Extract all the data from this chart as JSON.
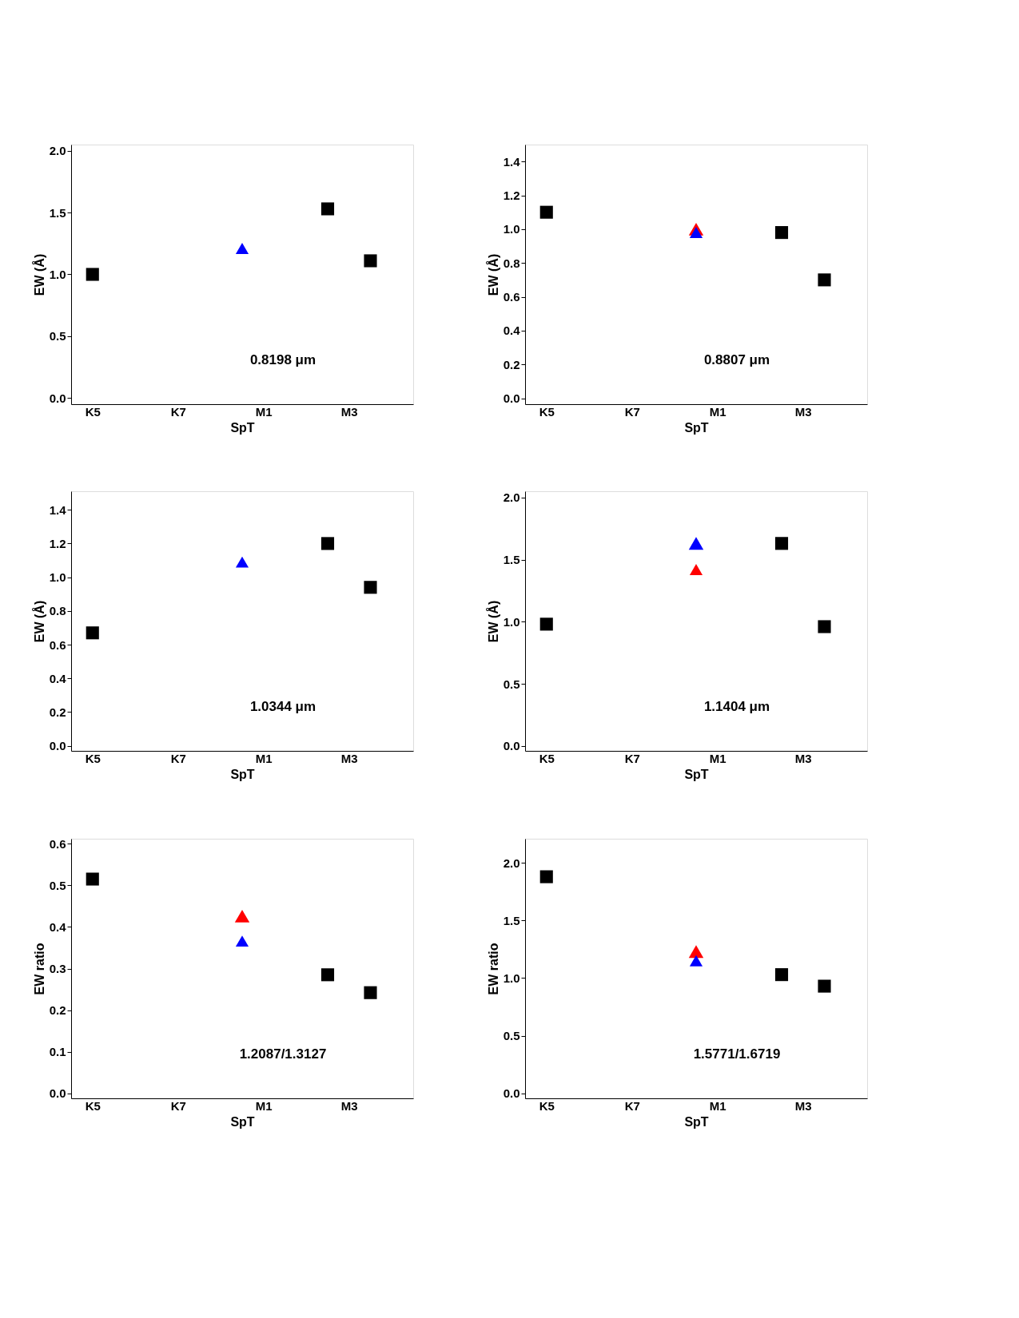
{
  "chart_data": [
    {
      "type": "scatter",
      "xlabel": "SpT",
      "ylabel": "EW (Å)",
      "annotations": [
        "0.8198 μm"
      ],
      "categories": [
        "K5",
        null,
        null,
        null,
        "K7",
        null,
        null,
        null,
        "M1",
        null,
        null,
        null,
        "M3",
        null,
        null
      ],
      "ylim": [
        -0.05,
        2.05
      ],
      "yticks": [
        {
          "value": 0,
          "label": "0.0"
        },
        {
          "value": 0.5,
          "label": "0.5"
        },
        {
          "value": 1,
          "label": "1.0"
        },
        {
          "value": 1.5,
          "label": "1.5"
        },
        {
          "value": 2,
          "label": "2.0"
        }
      ],
      "grid": false,
      "series": [
        {
          "color": "#000000",
          "marker": "square",
          "values": [
            1.0,
            null,
            null,
            null,
            null,
            null,
            null,
            null,
            null,
            null,
            null,
            1.53,
            null,
            1.11,
            null
          ]
        },
        {
          "color": "#0000ff",
          "marker": "triangle",
          "values": [
            null,
            null,
            null,
            null,
            null,
            null,
            null,
            1.21,
            null,
            null,
            null,
            null,
            null,
            null,
            null
          ]
        }
      ]
    },
    {
      "type": "scatter",
      "xlabel": "SpT",
      "ylabel": "EW (Å)",
      "annotations": [
        "0.8807 μm"
      ],
      "categories": [
        "K5",
        null,
        null,
        null,
        "K7",
        null,
        null,
        null,
        "M1",
        null,
        null,
        null,
        "M3",
        null,
        null
      ],
      "ylim": [
        -0.035,
        1.5
      ],
      "yticks": [
        {
          "value": 0,
          "label": "0.0"
        },
        0.2,
        0.4,
        0.6,
        0.8,
        {
          "value": 1,
          "label": "1.0"
        },
        1.2,
        1.4
      ],
      "grid": false,
      "series": [
        {
          "color": "#000000",
          "marker": "square",
          "values": [
            1.1,
            null,
            null,
            null,
            null,
            null,
            null,
            null,
            null,
            null,
            null,
            0.98,
            null,
            0.7,
            null
          ]
        },
        {
          "color": "#ff0000",
          "marker": "triangle",
          "values": [
            null,
            null,
            null,
            null,
            null,
            null,
            null,
            1.0,
            null,
            null,
            null,
            null,
            null,
            null,
            null
          ]
        },
        {
          "color": "#0000ff",
          "marker": "triangle",
          "values": [
            null,
            null,
            null,
            null,
            null,
            null,
            null,
            0.98,
            null,
            null,
            null,
            null,
            null,
            null,
            null
          ]
        }
      ]
    },
    {
      "type": "scatter",
      "xlabel": "SpT",
      "ylabel": "EW (Å)",
      "annotations": [
        "1.0344 μm"
      ],
      "categories": [
        "K5",
        null,
        null,
        null,
        "K7",
        null,
        null,
        null,
        "M1",
        null,
        null,
        null,
        "M3",
        null,
        null
      ],
      "ylim": [
        -0.03,
        1.51
      ],
      "yticks": [
        {
          "value": 0,
          "label": "0.0"
        },
        0.2,
        0.4,
        0.6,
        0.8,
        {
          "value": 1,
          "label": "1.0"
        },
        1.2,
        1.4
      ],
      "grid": false,
      "series": [
        {
          "color": "#000000",
          "marker": "square",
          "values": [
            0.67,
            null,
            null,
            null,
            null,
            null,
            null,
            null,
            null,
            null,
            null,
            1.2,
            null,
            0.94,
            null
          ]
        },
        {
          "color": "#0000ff",
          "marker": "triangle",
          "values": [
            null,
            null,
            null,
            null,
            null,
            null,
            null,
            1.09,
            null,
            null,
            null,
            null,
            null,
            null,
            null
          ]
        }
      ]
    },
    {
      "type": "scatter",
      "xlabel": "SpT",
      "ylabel": "EW (Å)",
      "annotations": [
        "1.1404 μm"
      ],
      "categories": [
        "K5",
        null,
        null,
        null,
        "K7",
        null,
        null,
        null,
        "M1",
        null,
        null,
        null,
        "M3",
        null,
        null
      ],
      "ylim": [
        -0.04,
        2.05
      ],
      "yticks": [
        {
          "value": 0,
          "label": "0.0"
        },
        {
          "value": 0.5,
          "label": "0.5"
        },
        {
          "value": 1,
          "label": "1.0"
        },
        {
          "value": 1.5,
          "label": "1.5"
        },
        {
          "value": 2,
          "label": "2.0"
        }
      ],
      "grid": false,
      "series": [
        {
          "color": "#000000",
          "marker": "square",
          "values": [
            0.98,
            null,
            null,
            null,
            null,
            null,
            null,
            null,
            null,
            null,
            null,
            1.63,
            null,
            0.96,
            null
          ]
        },
        {
          "color": "#0000ff",
          "marker": "triangle",
          "values": [
            null,
            null,
            null,
            null,
            null,
            null,
            null,
            1.63,
            null,
            null,
            null,
            null,
            null,
            null,
            null
          ]
        },
        {
          "color": "#ff0000",
          "marker": "triangle",
          "values": [
            null,
            null,
            null,
            null,
            null,
            null,
            null,
            1.42,
            null,
            null,
            null,
            null,
            null,
            null,
            null
          ]
        }
      ]
    },
    {
      "type": "scatter",
      "xlabel": "SpT",
      "ylabel": "EW ratio",
      "annotations": [
        "1.2087/1.3127"
      ],
      "categories": [
        "K5",
        null,
        null,
        null,
        "K7",
        null,
        null,
        null,
        "M1",
        null,
        null,
        null,
        "M3",
        null,
        null
      ],
      "ylim": [
        -0.012,
        0.612
      ],
      "yticks": [
        {
          "value": 0,
          "label": "0.0"
        },
        0.1,
        0.2,
        0.3,
        0.4,
        0.5,
        0.6
      ],
      "grid": false,
      "series": [
        {
          "color": "#000000",
          "marker": "square",
          "values": [
            0.515,
            null,
            null,
            null,
            null,
            null,
            null,
            null,
            null,
            null,
            null,
            0.285,
            null,
            0.242,
            null
          ]
        },
        {
          "color": "#ff0000",
          "marker": "triangle",
          "values": [
            null,
            null,
            null,
            null,
            null,
            null,
            null,
            0.426,
            null,
            null,
            null,
            null,
            null,
            null,
            null
          ]
        },
        {
          "color": "#0000ff",
          "marker": "triangle",
          "values": [
            null,
            null,
            null,
            null,
            null,
            null,
            null,
            0.366,
            null,
            null,
            null,
            null,
            null,
            null,
            null
          ]
        }
      ]
    },
    {
      "type": "scatter",
      "xlabel": "SpT",
      "ylabel": "EW ratio",
      "annotations": [
        "1.5771/1.6719"
      ],
      "categories": [
        "K5",
        null,
        null,
        null,
        "K7",
        null,
        null,
        null,
        "M1",
        null,
        null,
        null,
        "M3",
        null,
        null
      ],
      "ylim": [
        -0.044,
        2.21
      ],
      "yticks": [
        {
          "value": 0,
          "label": "0.0"
        },
        {
          "value": 0.5,
          "label": "0.5"
        },
        {
          "value": 1,
          "label": "1.0"
        },
        {
          "value": 1.5,
          "label": "1.5"
        },
        {
          "value": 2,
          "label": "2.0"
        }
      ],
      "grid": false,
      "series": [
        {
          "color": "#000000",
          "marker": "square",
          "values": [
            1.88,
            null,
            null,
            null,
            null,
            null,
            null,
            null,
            null,
            null,
            null,
            1.03,
            null,
            0.93,
            null
          ]
        },
        {
          "color": "#ff0000",
          "marker": "triangle",
          "values": [
            null,
            null,
            null,
            null,
            null,
            null,
            null,
            1.23,
            null,
            null,
            null,
            null,
            null,
            null,
            null
          ]
        },
        {
          "color": "#0000ff",
          "marker": "triangle",
          "values": [
            null,
            null,
            null,
            null,
            null,
            null,
            null,
            1.15,
            null,
            null,
            null,
            null,
            null,
            null,
            null
          ]
        }
      ]
    }
  ]
}
